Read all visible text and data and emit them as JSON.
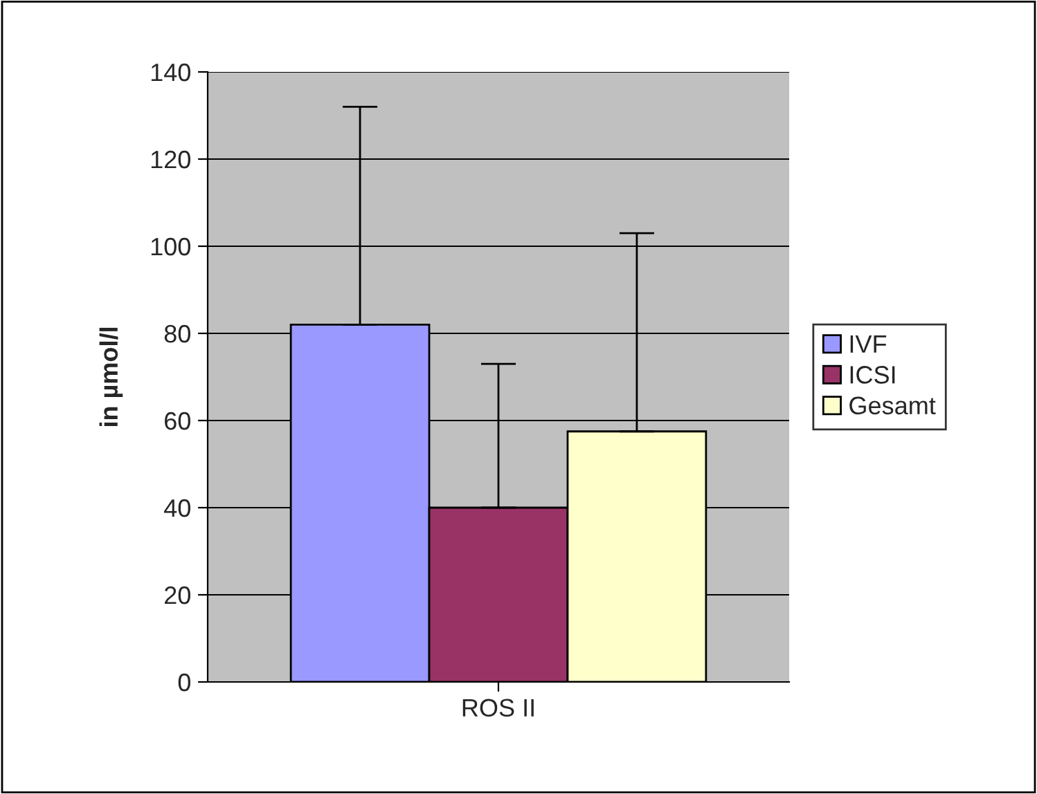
{
  "chart_data": {
    "type": "bar",
    "ylabel": "in µmol/l",
    "categories": [
      "ROS II"
    ],
    "series": [
      {
        "name": "IVF",
        "color": "#9999ff",
        "values": [
          82
        ],
        "errors": [
          [
            82,
            132
          ]
        ]
      },
      {
        "name": "ICSI",
        "color": "#993366",
        "values": [
          40
        ],
        "errors": [
          [
            40,
            73
          ]
        ]
      },
      {
        "name": "Gesamt",
        "color": "#ffffcc",
        "values": [
          57.5
        ],
        "errors": [
          [
            57.5,
            103
          ]
        ]
      }
    ],
    "ylim": [
      0,
      140
    ],
    "yticks": [
      0,
      20,
      40,
      60,
      80,
      100,
      120,
      140
    ],
    "grid": "y",
    "legend": "right"
  }
}
